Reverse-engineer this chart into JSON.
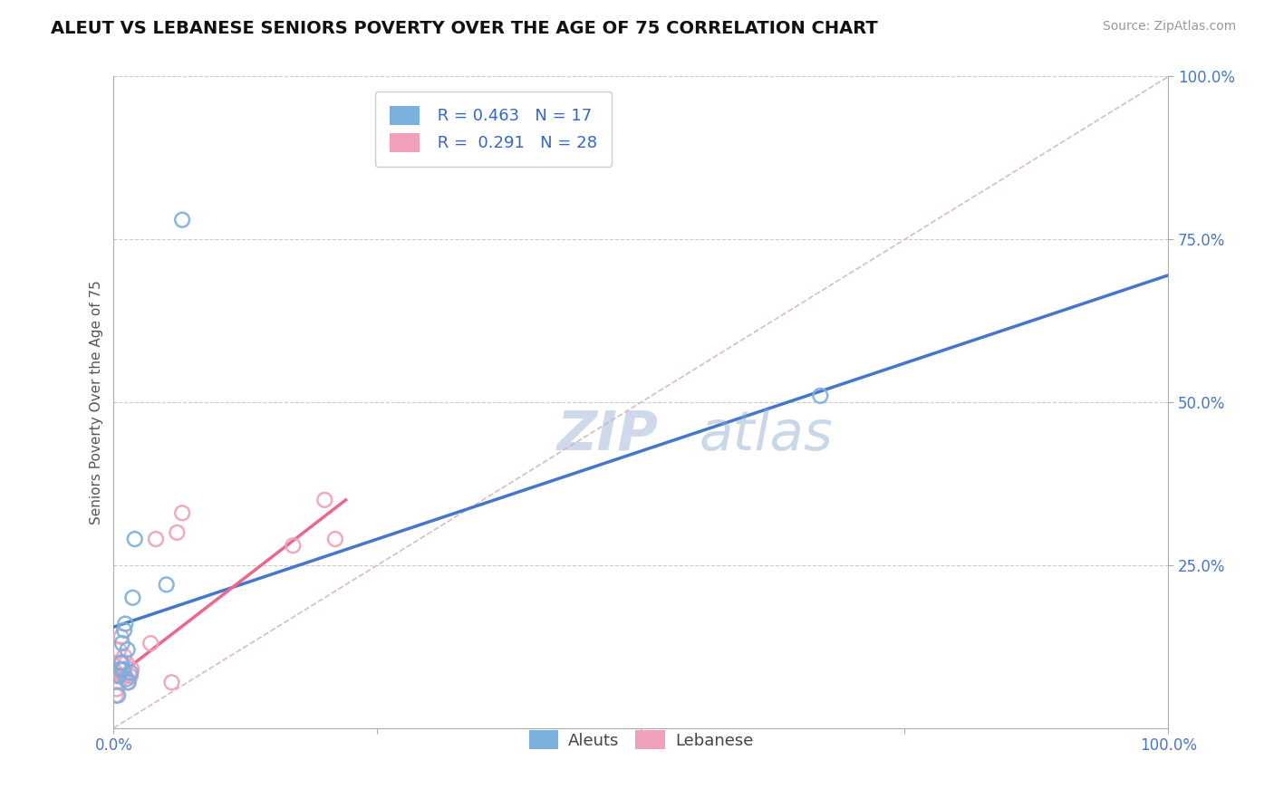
{
  "title": "ALEUT VS LEBANESE SENIORS POVERTY OVER THE AGE OF 75 CORRELATION CHART",
  "source_text": "Source: ZipAtlas.com",
  "ylabel": "Seniors Poverty Over the Age of 75",
  "aleut_R": 0.463,
  "aleut_N": 17,
  "lebanese_R": 0.291,
  "lebanese_N": 28,
  "aleut_color": "#7ab0dd",
  "lebanese_color": "#f0a0bb",
  "aleut_line_color": "#4477cc",
  "lebanese_line_color": "#ee6688",
  "diag_line_color": "#ddbbbb",
  "watermark_color": "#c8d8f0",
  "background_color": "#ffffff",
  "grid_color": "#cccccc",
  "aleut_x": [
    0.004,
    0.005,
    0.006,
    0.007,
    0.008,
    0.009,
    0.01,
    0.011,
    0.012,
    0.013,
    0.014,
    0.016,
    0.018,
    0.05,
    0.065,
    0.67,
    0.02
  ],
  "aleut_y": [
    0.05,
    0.08,
    0.09,
    0.1,
    0.13,
    0.09,
    0.15,
    0.16,
    0.075,
    0.12,
    0.07,
    0.085,
    0.2,
    0.22,
    0.78,
    0.51,
    0.29
  ],
  "lebanese_x": [
    0.002,
    0.003,
    0.003,
    0.004,
    0.005,
    0.005,
    0.006,
    0.007,
    0.007,
    0.008,
    0.008,
    0.009,
    0.01,
    0.01,
    0.011,
    0.012,
    0.013,
    0.015,
    0.016,
    0.017,
    0.035,
    0.04,
    0.06,
    0.065,
    0.17,
    0.2,
    0.21,
    0.055
  ],
  "lebanese_y": [
    0.05,
    0.06,
    0.08,
    0.08,
    0.07,
    0.12,
    0.1,
    0.09,
    0.14,
    0.1,
    0.08,
    0.08,
    0.09,
    0.11,
    0.08,
    0.1,
    0.07,
    0.08,
    0.08,
    0.09,
    0.13,
    0.29,
    0.3,
    0.33,
    0.28,
    0.35,
    0.29,
    0.07
  ],
  "aleut_line_x0": 0.0,
  "aleut_line_y0": 0.155,
  "aleut_line_x1": 1.0,
  "aleut_line_y1": 0.695,
  "leb_line_x0": 0.0,
  "leb_line_y0": 0.075,
  "leb_line_x1": 0.22,
  "leb_line_y1": 0.35,
  "xmin": 0.0,
  "xmax": 1.0,
  "ymin": 0.0,
  "ymax": 1.0,
  "xticks": [
    0.0,
    0.25,
    0.5,
    0.75,
    1.0
  ],
  "xticklabels": [
    "0.0%",
    "",
    "",
    "",
    "100.0%"
  ],
  "yticks": [
    0.25,
    0.5,
    0.75,
    1.0
  ],
  "yticklabels": [
    "25.0%",
    "50.0%",
    "75.0%",
    "100.0%"
  ],
  "marker_size": 130,
  "title_fontsize": 14,
  "axis_label_fontsize": 11,
  "tick_fontsize": 12,
  "legend_fontsize": 13,
  "source_fontsize": 10
}
